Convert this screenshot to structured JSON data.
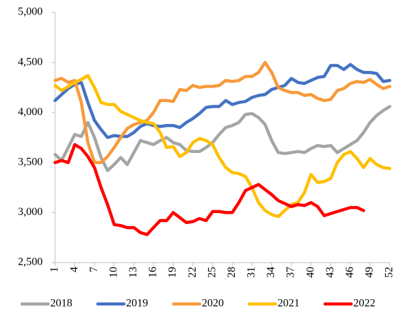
{
  "chart_data": {
    "type": "line",
    "x": [
      1,
      2,
      3,
      4,
      5,
      6,
      7,
      8,
      9,
      10,
      11,
      12,
      13,
      14,
      15,
      16,
      17,
      18,
      19,
      20,
      21,
      22,
      23,
      24,
      25,
      26,
      27,
      28,
      29,
      30,
      31,
      32,
      33,
      34,
      35,
      36,
      37,
      38,
      39,
      40,
      41,
      42,
      43,
      44,
      45,
      46,
      47,
      48,
      49,
      50,
      51,
      52
    ],
    "xlim": [
      1,
      52
    ],
    "xticks": [
      1,
      4,
      7,
      10,
      13,
      16,
      19,
      22,
      25,
      28,
      31,
      34,
      37,
      40,
      43,
      46,
      49,
      52
    ],
    "ylim": [
      2500,
      5000
    ],
    "yticks": [
      {
        "value": 2500,
        "label": "2,500"
      },
      {
        "value": 3000,
        "label": "3,000"
      },
      {
        "value": 3500,
        "label": "3,500"
      },
      {
        "value": 4000,
        "label": "4,000"
      },
      {
        "value": 4500,
        "label": "4,500"
      },
      {
        "value": 5000,
        "label": "5,000"
      }
    ],
    "grid": false,
    "legend": "bottom",
    "series": [
      {
        "name": "2018",
        "color": "#a5a5a5",
        "values": [
          3580,
          3520,
          3650,
          3780,
          3760,
          3900,
          3750,
          3550,
          3420,
          3480,
          3550,
          3480,
          3600,
          3720,
          3700,
          3680,
          3720,
          3750,
          3700,
          3680,
          3620,
          3610,
          3610,
          3650,
          3700,
          3780,
          3850,
          3870,
          3900,
          3980,
          3990,
          3950,
          3880,
          3720,
          3600,
          3590,
          3600,
          3610,
          3600,
          3640,
          3670,
          3660,
          3670,
          3600,
          3640,
          3680,
          3720,
          3800,
          3900,
          3970,
          4020,
          4060
        ]
      },
      {
        "name": "2019",
        "color": "#4472c4",
        "values": [
          4120,
          4180,
          4240,
          4280,
          4300,
          4100,
          3920,
          3830,
          3750,
          3770,
          3760,
          3760,
          3800,
          3860,
          3890,
          3870,
          3860,
          3870,
          3870,
          3850,
          3900,
          3940,
          3990,
          4050,
          4060,
          4060,
          4120,
          4080,
          4100,
          4110,
          4150,
          4170,
          4180,
          4230,
          4250,
          4270,
          4340,
          4300,
          4290,
          4320,
          4350,
          4360,
          4470,
          4470,
          4430,
          4480,
          4430,
          4400,
          4400,
          4390,
          4310,
          4320
        ]
      },
      {
        "name": "2020",
        "color": "#f79a3a",
        "values": [
          4320,
          4340,
          4300,
          4320,
          4100,
          3700,
          3500,
          3500,
          3560,
          3650,
          3750,
          3840,
          3880,
          3900,
          3920,
          4000,
          4120,
          4120,
          4110,
          4230,
          4220,
          4270,
          4250,
          4260,
          4260,
          4270,
          4320,
          4310,
          4320,
          4360,
          4360,
          4400,
          4500,
          4400,
          4250,
          4220,
          4200,
          4200,
          4170,
          4180,
          4140,
          4120,
          4130,
          4220,
          4240,
          4290,
          4310,
          4300,
          4330,
          4280,
          4240,
          4260
        ]
      },
      {
        "name": "2021",
        "color": "#ffc000",
        "values": [
          4270,
          4220,
          4260,
          4300,
          4330,
          4370,
          4250,
          4100,
          4080,
          4080,
          4010,
          3980,
          3950,
          3920,
          3900,
          3890,
          3800,
          3650,
          3660,
          3560,
          3600,
          3700,
          3740,
          3720,
          3680,
          3550,
          3450,
          3400,
          3390,
          3360,
          3250,
          3100,
          3020,
          2980,
          2960,
          3020,
          3080,
          3100,
          3200,
          3380,
          3300,
          3310,
          3340,
          3500,
          3580,
          3610,
          3540,
          3450,
          3540,
          3480,
          3450,
          3440
        ]
      },
      {
        "name": "2022",
        "color": "#ff0000",
        "values": [
          3500,
          3520,
          3500,
          3680,
          3640,
          3560,
          3450,
          3250,
          3080,
          2880,
          2870,
          2850,
          2850,
          2800,
          2780,
          2850,
          2920,
          2920,
          3000,
          2950,
          2900,
          2910,
          2940,
          2920,
          3010,
          3010,
          3000,
          3000,
          3100,
          3220,
          3250,
          3280,
          3230,
          3180,
          3120,
          3090,
          3060,
          3080,
          3070,
          3100,
          3060,
          2970,
          2990,
          3010,
          3030,
          3050,
          3050,
          3020,
          null,
          null,
          null,
          null
        ]
      }
    ]
  }
}
